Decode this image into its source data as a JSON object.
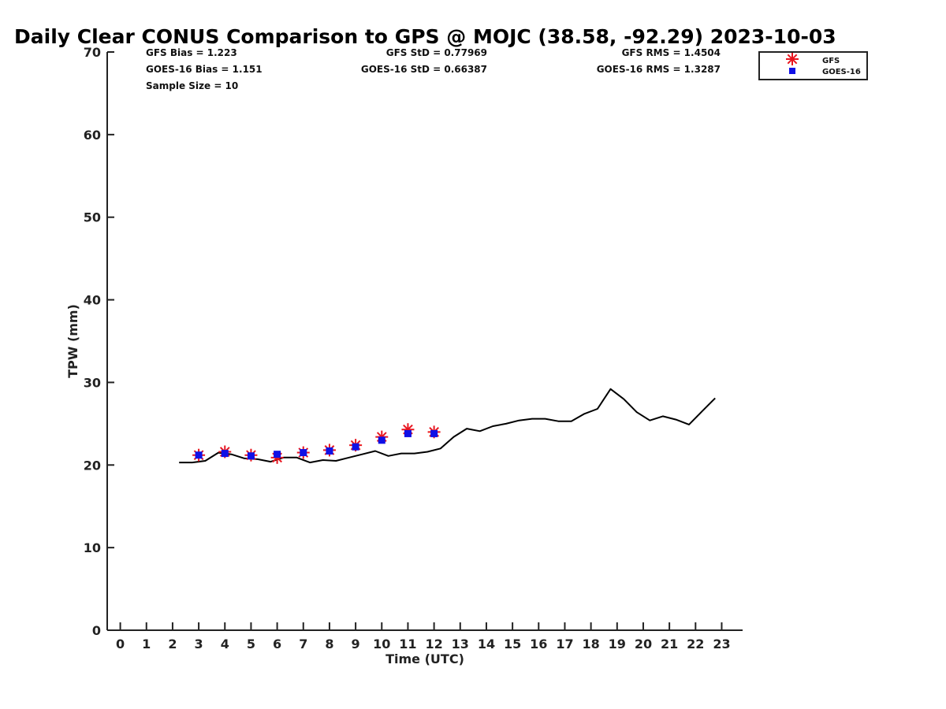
{
  "chart_data": {
    "type": "line",
    "title": "Daily Clear CONUS Comparison to GPS @ MOJC (38.58, -92.29) 2023-10-03",
    "xlabel": "Time (UTC)",
    "ylabel": "TPW (mm)",
    "xlim": [
      -0.5,
      23.8
    ],
    "ylim": [
      0,
      70
    ],
    "xticks": [
      0,
      1,
      2,
      3,
      4,
      5,
      6,
      7,
      8,
      9,
      10,
      11,
      12,
      13,
      14,
      15,
      16,
      17,
      18,
      19,
      20,
      21,
      22,
      23
    ],
    "yticks": [
      0,
      10,
      20,
      30,
      40,
      50,
      60,
      70
    ],
    "grid": false,
    "legend_position": "top-right, outside plot",
    "stats": {
      "gfs_bias": "GFS Bias = 1.223",
      "goes_bias": "GOES-16 Bias = 1.151",
      "sample_size": "Sample Size = 10",
      "gfs_std": "GFS StD = 0.77969",
      "goes_std": "GOES-16 StD = 0.66387",
      "gfs_rms": "GFS RMS = 1.4504",
      "goes_rms": "GOES-16 RMS = 1.3287"
    },
    "series": [
      {
        "name": "",
        "kind": "line",
        "color": "#000000",
        "x": [
          2.25,
          2.75,
          3.25,
          3.75,
          4.25,
          4.75,
          5.25,
          5.75,
          6.25,
          6.75,
          7.25,
          7.75,
          8.25,
          8.75,
          9.25,
          9.75,
          10.25,
          10.75,
          11.25,
          11.75,
          12.25,
          12.75,
          13.25,
          13.75,
          14.25,
          14.75,
          15.25,
          15.75,
          16.25,
          16.75,
          17.25,
          17.75,
          18.25,
          18.75,
          19.25,
          19.75,
          20.25,
          20.75,
          21.25,
          21.75,
          22.25,
          22.75
        ],
        "y": [
          20.3,
          20.3,
          20.5,
          21.5,
          21.3,
          20.8,
          20.7,
          20.4,
          20.9,
          20.9,
          20.3,
          20.6,
          20.5,
          20.9,
          21.3,
          21.7,
          21.1,
          21.4,
          21.4,
          21.6,
          22.0,
          23.4,
          24.4,
          24.1,
          24.7,
          25.0,
          25.4,
          25.6,
          25.6,
          25.3,
          25.3,
          26.2,
          26.8,
          29.2,
          28.0,
          26.4,
          25.4,
          25.9,
          25.5,
          24.9,
          26.5,
          28.1
        ]
      },
      {
        "name": "GFS",
        "kind": "scatter",
        "marker": "asterisk",
        "color": "#e8141e",
        "x": [
          3,
          4,
          5,
          6,
          7,
          8,
          9,
          10,
          11,
          12
        ],
        "y": [
          21.2,
          21.6,
          21.2,
          20.9,
          21.5,
          21.8,
          22.4,
          23.4,
          24.3,
          24.0
        ]
      },
      {
        "name": "GOES-16",
        "kind": "scatter",
        "marker": "square",
        "color": "#1010e6",
        "x": [
          3,
          4,
          5,
          6,
          7,
          8,
          9,
          10,
          11,
          12
        ],
        "y": [
          21.2,
          21.4,
          21.1,
          21.3,
          21.5,
          21.7,
          22.2,
          23.0,
          23.8,
          23.8
        ]
      }
    ]
  }
}
